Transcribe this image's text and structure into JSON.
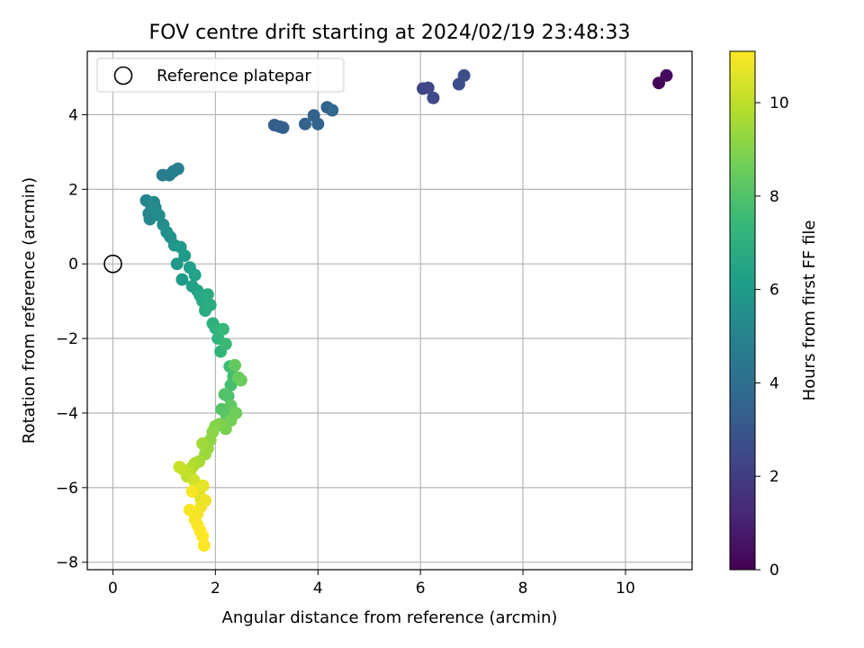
{
  "chart_data": {
    "type": "scatter",
    "title": "FOV centre drift starting at 2024/02/19 23:48:33",
    "xlabel": "Angular distance from reference (arcmin)",
    "ylabel": "Rotation from reference (arcmin)",
    "xlim": [
      -0.5,
      11.3
    ],
    "ylim": [
      -8.2,
      5.7
    ],
    "xticks": [
      0,
      2,
      4,
      6,
      8,
      10
    ],
    "yticks": [
      -8,
      -6,
      -4,
      -2,
      0,
      2,
      4
    ],
    "grid": true,
    "legend": {
      "placement": "upper-left",
      "entries": [
        "Reference platepar"
      ]
    },
    "reference_point": {
      "x": 0,
      "y": 0
    },
    "colorbar": {
      "label": "Hours from first FF file",
      "range": [
        0,
        11.1
      ],
      "ticks": [
        0,
        2,
        4,
        6,
        8,
        10
      ],
      "colormap": "viridis",
      "colormap_stops": [
        "#440154",
        "#482878",
        "#3e4989",
        "#31688e",
        "#26828e",
        "#1f9e89",
        "#35b779",
        "#6ece58",
        "#b5de2b",
        "#fde725"
      ]
    },
    "series": [
      {
        "marker": "filled-circle",
        "x": [
          10.65,
          10.8,
          6.05,
          6.15,
          6.25,
          6.75,
          6.85,
          3.15,
          3.25,
          3.32,
          3.75,
          3.92,
          4.0,
          4.18,
          4.28,
          0.97,
          1.1,
          1.18,
          1.27,
          0.65,
          0.7,
          0.72,
          0.75,
          0.8,
          0.83,
          0.9,
          0.98,
          1.05,
          1.12,
          1.2,
          1.25,
          1.32,
          1.35,
          1.4,
          1.5,
          1.55,
          1.6,
          1.65,
          1.7,
          1.75,
          1.8,
          1.85,
          1.9,
          1.95,
          2.0,
          2.05,
          2.1,
          2.15,
          2.2,
          2.28,
          2.35,
          2.3,
          2.25,
          2.18,
          2.12,
          2.22,
          2.3,
          2.38,
          2.45,
          2.5,
          2.4,
          2.3,
          2.2,
          2.08,
          2.0,
          1.95,
          1.9,
          1.85,
          1.8,
          1.75,
          1.68,
          1.6,
          1.55,
          1.5,
          1.45,
          1.4,
          1.3,
          1.58,
          1.62,
          1.68,
          1.72,
          1.76,
          1.8,
          1.72,
          1.65,
          1.6,
          1.55,
          1.5,
          1.65,
          1.7,
          1.75,
          1.78
        ],
        "y": [
          4.85,
          5.05,
          4.7,
          4.72,
          4.45,
          4.82,
          5.05,
          3.72,
          3.68,
          3.65,
          3.75,
          3.98,
          3.75,
          4.2,
          4.12,
          2.38,
          2.38,
          2.48,
          2.55,
          1.7,
          1.35,
          1.2,
          1.55,
          1.65,
          1.5,
          1.3,
          1.05,
          0.85,
          0.72,
          0.5,
          0.0,
          0.45,
          -0.42,
          0.22,
          -0.1,
          -0.6,
          -0.3,
          -0.72,
          -0.85,
          -1.0,
          -1.25,
          -0.82,
          -1.1,
          -1.6,
          -1.72,
          -2.0,
          -2.35,
          -1.75,
          -2.15,
          -2.75,
          -3.02,
          -3.25,
          -3.55,
          -3.5,
          -3.9,
          -4.1,
          -3.8,
          -2.72,
          -3.05,
          -3.12,
          -4.0,
          -4.2,
          -4.42,
          -4.3,
          -4.35,
          -4.5,
          -4.72,
          -4.95,
          -5.1,
          -4.82,
          -5.3,
          -5.35,
          -5.45,
          -5.6,
          -5.7,
          -5.55,
          -5.45,
          -5.8,
          -6.0,
          -6.15,
          -6.3,
          -5.95,
          -6.35,
          -6.5,
          -6.7,
          -6.85,
          -6.1,
          -6.6,
          -7.0,
          -7.15,
          -7.3,
          -7.55
        ],
        "hours": [
          0.1,
          0.3,
          2.3,
          2.4,
          2.5,
          2.6,
          2.7,
          3.3,
          3.35,
          3.4,
          3.45,
          3.5,
          3.55,
          3.6,
          3.65,
          4.7,
          4.75,
          4.8,
          4.85,
          5.0,
          5.1,
          5.15,
          5.2,
          5.25,
          5.3,
          5.4,
          5.5,
          5.6,
          5.7,
          5.8,
          5.9,
          6.0,
          6.05,
          6.1,
          6.2,
          6.3,
          6.35,
          6.45,
          6.55,
          6.65,
          6.75,
          6.8,
          6.9,
          7.0,
          7.1,
          7.2,
          7.3,
          7.4,
          7.5,
          7.6,
          7.7,
          7.8,
          7.9,
          8.0,
          8.1,
          8.2,
          8.3,
          8.4,
          8.5,
          8.55,
          8.6,
          8.7,
          8.8,
          8.9,
          9.0,
          9.1,
          9.2,
          9.3,
          9.4,
          9.5,
          9.6,
          9.7,
          9.8,
          9.9,
          10.0,
          10.1,
          10.2,
          10.3,
          10.4,
          10.5,
          10.6,
          10.7,
          10.8,
          10.85,
          10.9,
          10.95,
          11.0,
          11.02,
          11.05,
          11.07,
          11.08,
          11.1
        ]
      }
    ]
  }
}
